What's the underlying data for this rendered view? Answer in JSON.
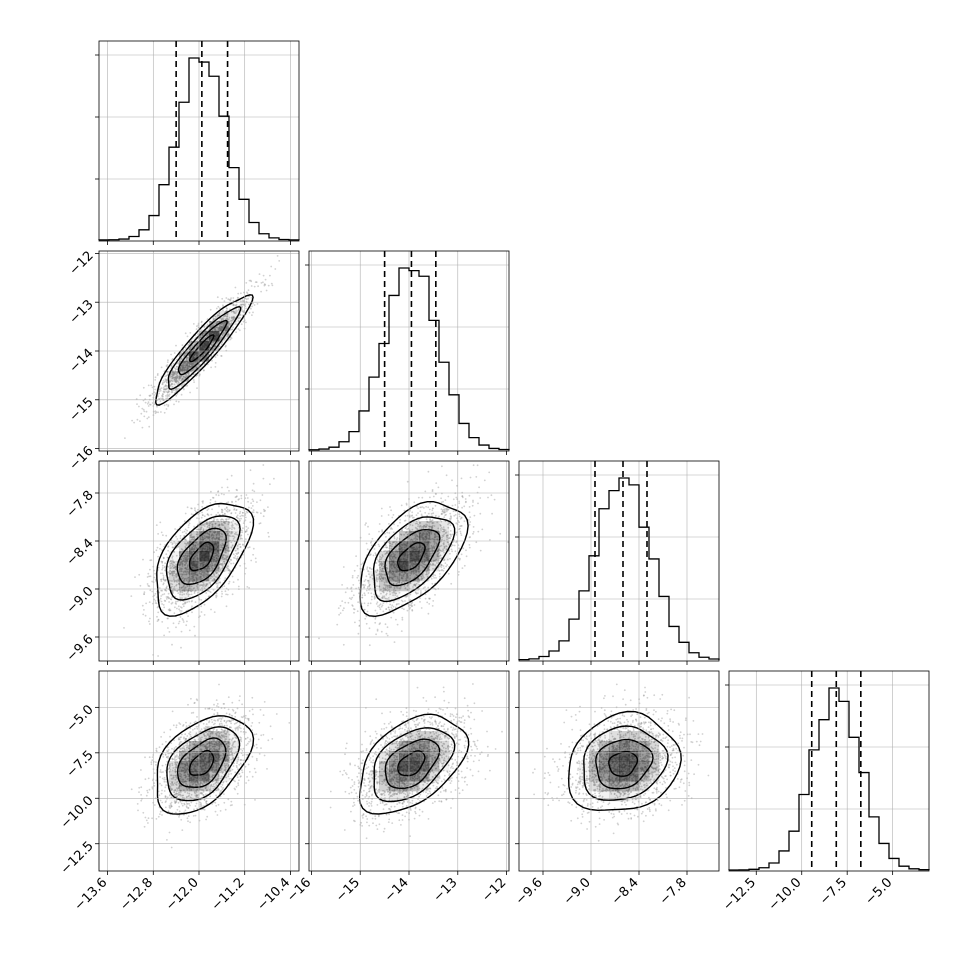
{
  "chart_data": {
    "type": "corner",
    "title": "",
    "parameters": [
      {
        "label": "",
        "mean": -11.95,
        "sigma": 0.42,
        "q16": -12.4,
        "q50": -11.95,
        "q84": -11.5,
        "range": [
          -13.75,
          -10.25
        ],
        "ticks": [
          -13.6,
          -12.8,
          -12.0,
          -11.2,
          -10.4
        ],
        "tick_labels": [
          "−13.6",
          "−12.8",
          "−12.0",
          "−11.2",
          "−10.4"
        ]
      },
      {
        "label": "",
        "mean": -13.95,
        "sigma": 0.55,
        "q16": -14.5,
        "q50": -13.95,
        "q84": -13.45,
        "range": [
          -16.05,
          -11.95
        ],
        "ticks": [
          -16,
          -15,
          -14,
          -13,
          -12
        ],
        "tick_labels": [
          "−16",
          "−15",
          "−14",
          "−13",
          "−12"
        ]
      },
      {
        "label": "",
        "mean": -8.6,
        "sigma": 0.35,
        "q16": -8.95,
        "q50": -8.6,
        "q84": -8.3,
        "range": [
          -9.9,
          -7.4
        ],
        "ticks": [
          -9.6,
          -9.0,
          -8.4,
          -7.8
        ],
        "tick_labels": [
          "−9.6",
          "−9.0",
          "−8.4",
          "−7.8"
        ]
      },
      {
        "label": "",
        "mean": -8.1,
        "sigma": 1.35,
        "q16": -9.45,
        "q50": -8.1,
        "q84": -6.75,
        "range": [
          -14.0,
          -3.0
        ],
        "ticks": [
          -12.5,
          -10.0,
          -7.5,
          -5.0
        ],
        "tick_labels": [
          "−12.5",
          "−10.0",
          "−7.5",
          "−5.0"
        ]
      }
    ],
    "correlations": [
      {
        "i": 0,
        "j": 1,
        "rho": 0.92
      },
      {
        "i": 0,
        "j": 2,
        "rho": 0.55
      },
      {
        "i": 1,
        "j": 2,
        "rho": 0.55
      },
      {
        "i": 0,
        "j": 3,
        "rho": 0.45
      },
      {
        "i": 1,
        "j": 3,
        "rho": 0.45
      },
      {
        "i": 2,
        "j": 3,
        "rho": 0.15
      }
    ],
    "quantile_lines": [
      "q16",
      "q50",
      "q84"
    ],
    "histogram_bins": 20,
    "contour_levels_sigma": [
      0.5,
      1.0,
      1.5,
      2.0
    ],
    "grid": true,
    "colors": {
      "line": "#000000",
      "points": "#9a9a9a",
      "grid": "#b0b0b0",
      "density": "#000000"
    }
  }
}
